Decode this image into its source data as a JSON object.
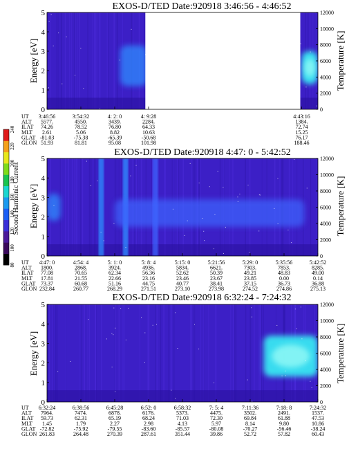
{
  "colorbar": {
    "label": "Second Harmonic Current",
    "ticks": [
      "80",
      "100",
      "120",
      "140",
      "160",
      "180",
      "200",
      "220",
      "240"
    ],
    "colors": [
      "#000000",
      "#3a0a5c",
      "#4b1a9a",
      "#3a2fd8",
      "#1a5ef5",
      "#1a9af0",
      "#1ad6d0",
      "#19c44f",
      "#7fdc1a",
      "#e8e81a",
      "#f5a01a",
      "#e01a1a"
    ]
  },
  "chart_data": [
    {
      "type": "heatmap",
      "title": "EXOS-D/TED   Date:920918  3:46:56 - 4:46:52",
      "ylabel": "Energy [eV]",
      "ylabel_right": "Temperature [K]",
      "ylim": [
        0,
        5
      ],
      "yticks": [
        "0",
        "1",
        "2",
        "3",
        "4",
        "5"
      ],
      "ylim_right": [
        0,
        12000
      ],
      "yticks_right": [
        "0",
        "2000",
        "4000",
        "6000",
        "8000",
        "10000",
        "12000"
      ],
      "data_gaps": [
        [
          0.363,
          0.935
        ]
      ],
      "intensity_features": [
        {
          "x_range": [
            0.27,
            0.37
          ],
          "energy_range": [
            1.2,
            3.3
          ],
          "level": "high"
        },
        {
          "x_range": [
            0.94,
            1.0
          ],
          "energy_range": [
            1.3,
            3.0
          ],
          "level": "very high"
        }
      ],
      "rows": [
        {
          "label": "UT",
          "values": [
            "3:46:56",
            "3:54:32",
            "4: 2: 0",
            "4: 9:28",
            "4:43:16"
          ]
        },
        {
          "label": "ALT",
          "values": [
            "5577.",
            "4550.",
            "3439.",
            "2284.",
            "1384."
          ]
        },
        {
          "label": "ILAT",
          "values": [
            "74.26",
            "78.52",
            "76.80",
            "64.33",
            "72.74"
          ]
        },
        {
          "label": "MLT",
          "values": [
            "2.61",
            "5.06",
            "8.82",
            "10.63",
            "15.25"
          ]
        },
        {
          "label": "GLAT",
          "values": [
            "-81.03",
            "-75.38",
            "-65.39",
            "-50.68",
            "76.17"
          ]
        },
        {
          "label": "GLON",
          "values": [
            "51.93",
            "81.81",
            "95.08",
            "101.98",
            "188.46"
          ]
        }
      ],
      "x_fractions": [
        0.0,
        0.125,
        0.25,
        0.375,
        0.94
      ]
    },
    {
      "type": "heatmap",
      "title": "EXOS-D/TED   Date:920918  4:47: 0 - 5:42:52",
      "ylabel": "Energy [eV]",
      "ylabel_right": "Temperature [K]",
      "ylim": [
        0,
        5
      ],
      "yticks": [
        "0",
        "1",
        "2",
        "3",
        "4",
        "5"
      ],
      "ylim_right": [
        0,
        12000
      ],
      "yticks_right": [
        "0",
        "2000",
        "4000",
        "6000",
        "8000",
        "10000",
        "12000"
      ],
      "data_gaps": [],
      "intensity_features": [
        {
          "x_range": [
            0.0,
            0.05
          ],
          "energy_range": [
            1.8,
            3.2
          ],
          "level": "high"
        },
        {
          "x_range": [
            0.19,
            0.21
          ],
          "energy_range": [
            0,
            5
          ],
          "level": "high"
        },
        {
          "x_range": [
            0.28,
            0.3
          ],
          "energy_range": [
            0,
            5
          ],
          "level": "high"
        },
        {
          "x_range": [
            0.39,
            0.41
          ],
          "energy_range": [
            0,
            5
          ],
          "level": "medium"
        },
        {
          "x_range": [
            0.25,
            0.95
          ],
          "energy_range": [
            1.5,
            2.9
          ],
          "level": "medium"
        }
      ],
      "rows": [
        {
          "label": "UT",
          "values": [
            "4:47: 0",
            "4:54: 4",
            "5: 1: 0",
            "5: 8: 4",
            "5:15: 0",
            "5:21:56",
            "5:29: 0",
            "5:35:56",
            "5:42:52"
          ]
        },
        {
          "label": "ALT",
          "values": [
            "1800.",
            "2868.",
            "3924.",
            "4936.",
            "5834.",
            "6621.",
            "7303.",
            "7853.",
            "8285."
          ]
        },
        {
          "label": "ILAT",
          "values": [
            "77.08",
            "70.65",
            "62.34",
            "56.36",
            "52.62",
            "50.39",
            "49.21",
            "48.83",
            "49.00"
          ]
        },
        {
          "label": "MLT",
          "values": [
            "17.81",
            "21.55",
            "22.66",
            "23.16",
            "23.46",
            "23.67",
            "23.85",
            "0.00",
            "0.14"
          ]
        },
        {
          "label": "GLAT",
          "values": [
            "73.37",
            "60.68",
            "51.16",
            "44.75",
            "40.77",
            "38.41",
            "37.15",
            "36.73",
            "36.88"
          ]
        },
        {
          "label": "GLON",
          "values": [
            "232.84",
            "260.77",
            "268.29",
            "271.51",
            "273.10",
            "273.98",
            "274.52",
            "274.86",
            "275.13"
          ]
        }
      ],
      "x_fractions": [
        0.0,
        0.125,
        0.25,
        0.375,
        0.5,
        0.625,
        0.75,
        0.875,
        1.0
      ]
    },
    {
      "type": "heatmap",
      "title": "EXOS-D/TED   Date:920918  6:32:24 - 7:24:32",
      "ylabel": "Energy [eV]",
      "ylabel_right": "Temperature [K]",
      "ylim": [
        0,
        5
      ],
      "yticks": [
        "0",
        "1",
        "2",
        "3",
        "4",
        "5"
      ],
      "ylim_right": [
        0,
        12000
      ],
      "yticks_right": [
        "0",
        "2000",
        "4000",
        "6000",
        "8000",
        "10000",
        "12000"
      ],
      "data_gaps": [],
      "intensity_features": [
        {
          "x_range": [
            0.8,
            1.0
          ],
          "energy_range": [
            1.3,
            3.4
          ],
          "level": "very high"
        }
      ],
      "rows": [
        {
          "label": "UT",
          "values": [
            "6:32:24",
            "6:38:56",
            "6:45:28",
            "6:52: 0",
            "6:58:32",
            "7: 5: 4",
            "7:11:36",
            "7:18: 8",
            "7:24:32"
          ]
        },
        {
          "label": "ALT",
          "values": [
            "7964.",
            "7474.",
            "6878.",
            "6176.",
            "5373.",
            "4475.",
            "3502.",
            "2491.",
            "1537."
          ]
        },
        {
          "label": "ILAT",
          "values": [
            "59.73",
            "62.31",
            "65.19",
            "68.24",
            "71.03",
            "72.30",
            "69.84",
            "61.88",
            "47.53"
          ]
        },
        {
          "label": "MLT",
          "values": [
            "1.45",
            "1.79",
            "2.27",
            "2.98",
            "4.13",
            "5.97",
            "8.14",
            "9.80",
            "10.86"
          ]
        },
        {
          "label": "GLAT",
          "values": [
            "-72.82",
            "-75.92",
            "-79.55",
            "-83.60",
            "-85.57",
            "-80.08",
            "-70.27",
            "-56.46",
            "-38.24"
          ]
        },
        {
          "label": "GLON",
          "values": [
            "261.83",
            "264.48",
            "270.39",
            "287.61",
            "351.44",
            "39.86",
            "52.72",
            "57.82",
            "60.43"
          ]
        }
      ],
      "x_fractions": [
        0.0,
        0.125,
        0.25,
        0.375,
        0.5,
        0.625,
        0.75,
        0.875,
        1.0
      ]
    }
  ]
}
